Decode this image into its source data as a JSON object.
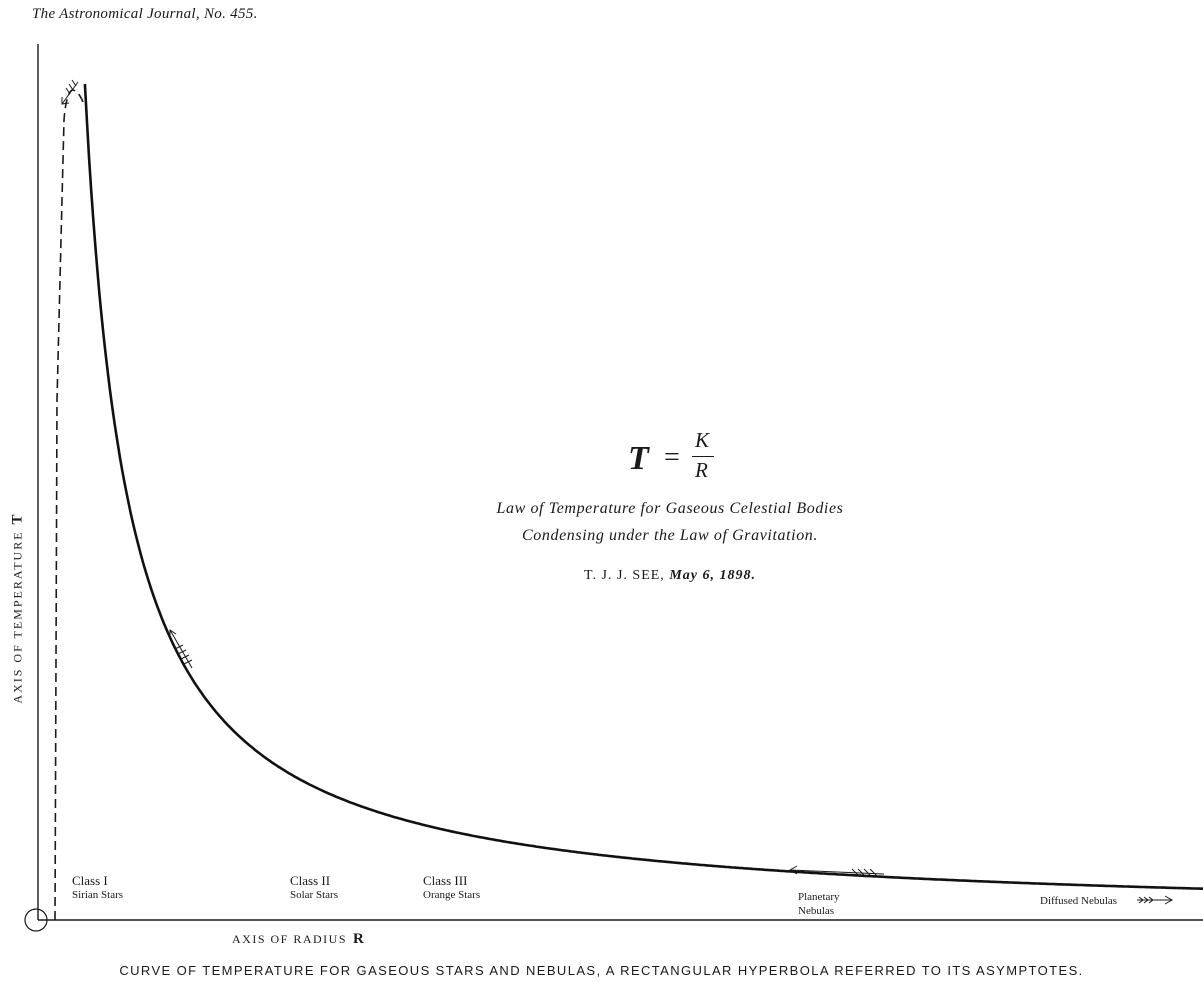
{
  "header": {
    "journal": "The Astronomical Journal, No. 455."
  },
  "formula": {
    "lhs": "T",
    "equals": "=",
    "numerator": "K",
    "denominator": "R"
  },
  "law": {
    "line1": "Law of Temperature for Gaseous Celestial Bodies",
    "line2": "Condensing under the Law of Gravitation."
  },
  "author": {
    "name": "T. J. J. SEE,",
    "date": "May 6, 1898."
  },
  "axes": {
    "y_label": "AXIS OF TEMPERATURE",
    "y_symbol": "T",
    "x_label": "AXIS OF RADIUS",
    "x_symbol": "R"
  },
  "classes": [
    {
      "name": "Class I",
      "desc": "Sirian Stars"
    },
    {
      "name": "Class II",
      "desc": "Solar Stars"
    },
    {
      "name": "Class III",
      "desc": "Orange Stars"
    },
    {
      "name": "Planetary",
      "desc": "Nebulas"
    },
    {
      "name": "Diffused Nebulas",
      "desc": ""
    }
  ],
  "caption": "CURVE OF TEMPERATURE FOR GASEOUS STARS AND NEBULAS, A RECTANGULAR HYPERBOLA REFERRED TO ITS ASYMPTOTES.",
  "chart_data": {
    "type": "line",
    "curve": "rectangular hyperbola T = K / R",
    "series": [
      {
        "values_note": "",
        "x": [
          1,
          2,
          3,
          4,
          6,
          8,
          12,
          16,
          20,
          24,
          28
        ],
        "y": [
          28,
          14,
          9.33,
          7,
          4.67,
          3.5,
          2.33,
          1.75,
          1.4,
          1.17,
          1
        ]
      }
    ],
    "grid": false,
    "legend": "none"
  }
}
